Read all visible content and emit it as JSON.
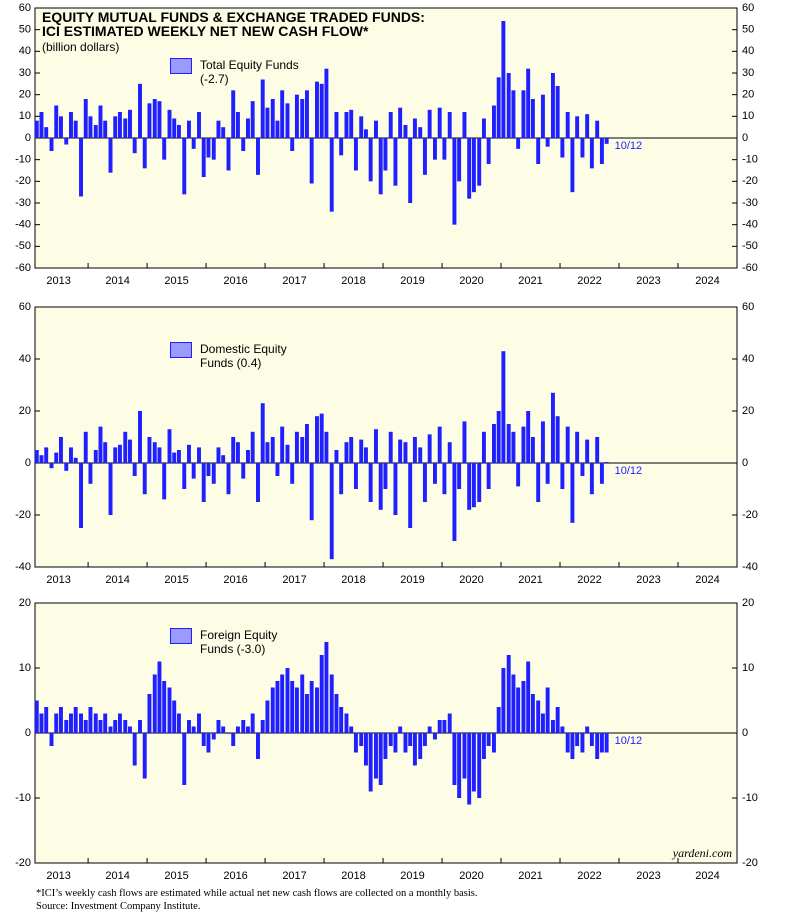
{
  "footnote": "*ICI’s weekly cash flows are estimated while actual net new cash flows are collected on a monthly basis.",
  "source": "Source: Investment Company Institute.",
  "chart_data": [
    {
      "type": "bar",
      "title": [
        "EQUITY MUTUAL FUNDS & EXCHANGE TRADED FUNDS:",
        " ICI ESTIMATED WEEKLY NET NEW CASH FLOW*"
      ],
      "units": "(billion dollars)",
      "annotation": "10/12",
      "x": [
        2013.13,
        2013.21,
        2013.29,
        2013.38,
        2013.46,
        2013.54,
        2013.63,
        2013.71,
        2013.79,
        2013.88,
        2013.96,
        2014.04,
        2014.13,
        2014.21,
        2014.29,
        2014.38,
        2014.46,
        2014.54,
        2014.63,
        2014.71,
        2014.79,
        2014.88,
        2014.96,
        2015.04,
        2015.13,
        2015.21,
        2015.29,
        2015.38,
        2015.46,
        2015.54,
        2015.63,
        2015.71,
        2015.79,
        2015.88,
        2015.96,
        2016.04,
        2016.13,
        2016.21,
        2016.29,
        2016.38,
        2016.46,
        2016.54,
        2016.63,
        2016.71,
        2016.79,
        2016.88,
        2016.96,
        2017.04,
        2017.13,
        2017.21,
        2017.29,
        2017.38,
        2017.46,
        2017.54,
        2017.63,
        2017.71,
        2017.79,
        2017.88,
        2017.96,
        2018.04,
        2018.13,
        2018.21,
        2018.29,
        2018.38,
        2018.46,
        2018.54,
        2018.63,
        2018.71,
        2018.79,
        2018.88,
        2018.96,
        2019.04,
        2019.13,
        2019.21,
        2019.29,
        2019.38,
        2019.46,
        2019.54,
        2019.63,
        2019.71,
        2019.79,
        2019.88,
        2019.96,
        2020.04,
        2020.13,
        2020.21,
        2020.29,
        2020.38,
        2020.46,
        2020.54,
        2020.63,
        2020.71,
        2020.79,
        2020.88,
        2020.96,
        2021.04,
        2021.13,
        2021.21,
        2021.29,
        2021.38,
        2021.46,
        2021.54,
        2021.63,
        2021.71,
        2021.79,
        2021.88,
        2021.96,
        2022.04,
        2022.13,
        2022.21,
        2022.29,
        2022.38,
        2022.46,
        2022.54,
        2022.63,
        2022.71,
        2022.79
      ],
      "series": [
        {
          "name": "Total Equity Funds (-2.7)",
          "color": "#1f1fff",
          "values": [
            8,
            12,
            5,
            -6,
            15,
            10,
            -3,
            12,
            8,
            -27,
            18,
            10,
            6,
            15,
            8,
            -16,
            10,
            12,
            9,
            13,
            -7,
            25,
            -14,
            16,
            18,
            17,
            -10,
            13,
            9,
            6,
            -26,
            8,
            -5,
            12,
            -18,
            -9,
            -10,
            8,
            5,
            -15,
            22,
            12,
            -6,
            9,
            17,
            -17,
            27,
            14,
            18,
            8,
            22,
            16,
            -6,
            20,
            18,
            22,
            -21,
            26,
            25,
            32,
            -34,
            12,
            -8,
            12,
            13,
            -15,
            10,
            4,
            -20,
            8,
            -26,
            -15,
            12,
            -22,
            14,
            6,
            -30,
            9,
            5,
            -17,
            13,
            -10,
            14,
            -10,
            12,
            -40,
            -20,
            12,
            -28,
            -25,
            -22,
            9,
            -12,
            15,
            28,
            54,
            30,
            22,
            -5,
            22,
            32,
            18,
            -12,
            20,
            -4,
            30,
            24,
            -9,
            12,
            -25,
            10,
            -9,
            11,
            -14,
            8,
            -12,
            -2.7
          ]
        }
      ],
      "xlim": [
        2013.1,
        2025
      ],
      "xticks": [
        2013,
        2014,
        2015,
        2016,
        2017,
        2018,
        2019,
        2020,
        2021,
        2022,
        2023,
        2024,
        2025
      ],
      "year_labels": [
        "2013",
        "2014",
        "2015",
        "2016",
        "2017",
        "2018",
        "2019",
        "2020",
        "2021",
        "2022",
        "2023",
        "2024"
      ],
      "ylim": [
        -60,
        60
      ],
      "yticks": [
        -60,
        -50,
        -40,
        -30,
        -20,
        -10,
        0,
        10,
        20,
        30,
        40,
        50,
        60
      ]
    },
    {
      "type": "bar",
      "annotation": "10/12",
      "x": [
        2013.13,
        2013.21,
        2013.29,
        2013.38,
        2013.46,
        2013.54,
        2013.63,
        2013.71,
        2013.79,
        2013.88,
        2013.96,
        2014.04,
        2014.13,
        2014.21,
        2014.29,
        2014.38,
        2014.46,
        2014.54,
        2014.63,
        2014.71,
        2014.79,
        2014.88,
        2014.96,
        2015.04,
        2015.13,
        2015.21,
        2015.29,
        2015.38,
        2015.46,
        2015.54,
        2015.63,
        2015.71,
        2015.79,
        2015.88,
        2015.96,
        2016.04,
        2016.13,
        2016.21,
        2016.29,
        2016.38,
        2016.46,
        2016.54,
        2016.63,
        2016.71,
        2016.79,
        2016.88,
        2016.96,
        2017.04,
        2017.13,
        2017.21,
        2017.29,
        2017.38,
        2017.46,
        2017.54,
        2017.63,
        2017.71,
        2017.79,
        2017.88,
        2017.96,
        2018.04,
        2018.13,
        2018.21,
        2018.29,
        2018.38,
        2018.46,
        2018.54,
        2018.63,
        2018.71,
        2018.79,
        2018.88,
        2018.96,
        2019.04,
        2019.13,
        2019.21,
        2019.29,
        2019.38,
        2019.46,
        2019.54,
        2019.63,
        2019.71,
        2019.79,
        2019.88,
        2019.96,
        2020.04,
        2020.13,
        2020.21,
        2020.29,
        2020.38,
        2020.46,
        2020.54,
        2020.63,
        2020.71,
        2020.79,
        2020.88,
        2020.96,
        2021.04,
        2021.13,
        2021.21,
        2021.29,
        2021.38,
        2021.46,
        2021.54,
        2021.63,
        2021.71,
        2021.79,
        2021.88,
        2021.96,
        2022.04,
        2022.13,
        2022.21,
        2022.29,
        2022.38,
        2022.46,
        2022.54,
        2022.63,
        2022.71,
        2022.79
      ],
      "series": [
        {
          "name": "Domestic Equity Funds (0.4)",
          "color": "#1f1fff",
          "values": [
            5,
            3,
            6,
            -2,
            4,
            10,
            -3,
            6,
            2,
            -25,
            12,
            -8,
            5,
            14,
            8,
            -20,
            6,
            7,
            12,
            9,
            -5,
            20,
            -12,
            10,
            8,
            6,
            -14,
            13,
            4,
            5,
            -10,
            7,
            -6,
            6,
            -15,
            -5,
            -8,
            6,
            3,
            -12,
            10,
            8,
            -6,
            5,
            12,
            -15,
            23,
            8,
            10,
            -5,
            14,
            7,
            -8,
            12,
            10,
            15,
            -22,
            18,
            19,
            12,
            -37,
            5,
            -12,
            8,
            10,
            -10,
            9,
            6,
            -15,
            13,
            -18,
            -10,
            12,
            -20,
            9,
            8,
            -25,
            10,
            6,
            -15,
            11,
            -8,
            14,
            -12,
            8,
            -30,
            -10,
            16,
            -18,
            -17,
            -15,
            12,
            -10,
            15,
            20,
            43,
            15,
            12,
            -9,
            14,
            20,
            10,
            -15,
            16,
            -8,
            27,
            18,
            -10,
            14,
            -23,
            12,
            -5,
            9,
            -12,
            10,
            -8,
            0.4
          ]
        }
      ],
      "xlim": [
        2013.1,
        2025
      ],
      "xticks": [
        2013,
        2014,
        2015,
        2016,
        2017,
        2018,
        2019,
        2020,
        2021,
        2022,
        2023,
        2024,
        2025
      ],
      "year_labels": [
        "2013",
        "2014",
        "2015",
        "2016",
        "2017",
        "2018",
        "2019",
        "2020",
        "2021",
        "2022",
        "2023",
        "2024"
      ],
      "ylim": [
        -40,
        60
      ],
      "yticks": [
        -40,
        -20,
        0,
        20,
        40,
        60
      ]
    },
    {
      "type": "bar",
      "annotation": "10/12",
      "credit": "yardeni.com",
      "x": [
        2013.13,
        2013.21,
        2013.29,
        2013.38,
        2013.46,
        2013.54,
        2013.63,
        2013.71,
        2013.79,
        2013.88,
        2013.96,
        2014.04,
        2014.13,
        2014.21,
        2014.29,
        2014.38,
        2014.46,
        2014.54,
        2014.63,
        2014.71,
        2014.79,
        2014.88,
        2014.96,
        2015.04,
        2015.13,
        2015.21,
        2015.29,
        2015.38,
        2015.46,
        2015.54,
        2015.63,
        2015.71,
        2015.79,
        2015.88,
        2015.96,
        2016.04,
        2016.13,
        2016.21,
        2016.29,
        2016.38,
        2016.46,
        2016.54,
        2016.63,
        2016.71,
        2016.79,
        2016.88,
        2016.96,
        2017.04,
        2017.13,
        2017.21,
        2017.29,
        2017.38,
        2017.46,
        2017.54,
        2017.63,
        2017.71,
        2017.79,
        2017.88,
        2017.96,
        2018.04,
        2018.13,
        2018.21,
        2018.29,
        2018.38,
        2018.46,
        2018.54,
        2018.63,
        2018.71,
        2018.79,
        2018.88,
        2018.96,
        2019.04,
        2019.13,
        2019.21,
        2019.29,
        2019.38,
        2019.46,
        2019.54,
        2019.63,
        2019.71,
        2019.79,
        2019.88,
        2019.96,
        2020.04,
        2020.13,
        2020.21,
        2020.29,
        2020.38,
        2020.46,
        2020.54,
        2020.63,
        2020.71,
        2020.79,
        2020.88,
        2020.96,
        2021.04,
        2021.13,
        2021.21,
        2021.29,
        2021.38,
        2021.46,
        2021.54,
        2021.63,
        2021.71,
        2021.79,
        2021.88,
        2021.96,
        2022.04,
        2022.13,
        2022.21,
        2022.29,
        2022.38,
        2022.46,
        2022.54,
        2022.63,
        2022.71,
        2022.79
      ],
      "series": [
        {
          "name": "Foreign Equity Funds (-3.0)",
          "color": "#1f1fff",
          "values": [
            5,
            3,
            4,
            -2,
            3,
            4,
            2,
            3,
            4,
            3,
            2,
            4,
            3,
            2,
            3,
            1,
            2,
            3,
            2,
            1,
            -5,
            2,
            -7,
            6,
            9,
            11,
            8,
            7,
            5,
            3,
            -8,
            2,
            1,
            3,
            -2,
            -3,
            -1,
            2,
            1,
            0,
            -2,
            1,
            2,
            1,
            3,
            -4,
            2,
            5,
            7,
            8,
            9,
            10,
            8,
            7,
            9,
            6,
            8,
            7,
            12,
            14,
            9,
            6,
            4,
            3,
            1,
            -3,
            -2,
            -5,
            -9,
            -7,
            -8,
            -4,
            -2,
            -3,
            1,
            -3,
            -2,
            -5,
            -4,
            -2,
            1,
            -1,
            2,
            2,
            3,
            -8,
            -10,
            -7,
            -11,
            -9,
            -10,
            -4,
            -2,
            -3,
            4,
            10,
            12,
            9,
            7,
            8,
            11,
            6,
            5,
            3,
            7,
            2,
            4,
            1,
            -3,
            -4,
            -2,
            -3,
            1,
            -2,
            -4,
            -3,
            -3.0
          ]
        }
      ],
      "xlim": [
        2013.1,
        2025
      ],
      "xticks": [
        2013,
        2014,
        2015,
        2016,
        2017,
        2018,
        2019,
        2020,
        2021,
        2022,
        2023,
        2024,
        2025
      ],
      "year_labels": [
        "2013",
        "2014",
        "2015",
        "2016",
        "2017",
        "2018",
        "2019",
        "2020",
        "2021",
        "2022",
        "2023",
        "2024"
      ],
      "ylim": [
        -20,
        20
      ],
      "yticks": [
        -20,
        -10,
        0,
        10,
        20
      ]
    }
  ]
}
